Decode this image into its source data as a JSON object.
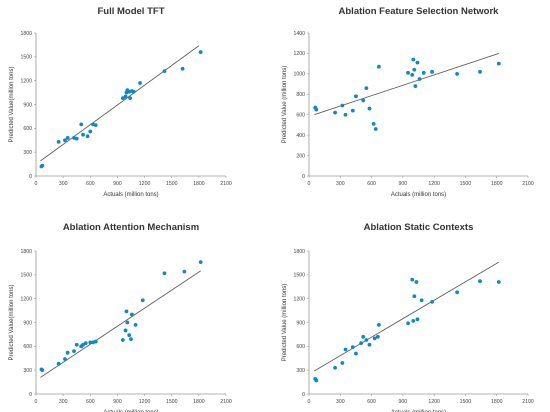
{
  "chart_data": [
    {
      "type": "scatter",
      "title": "Full Model TFT",
      "xlabel": "Actuals  (million tons)",
      "ylabel": "Predicted Value(million tons)",
      "xlim": [
        0,
        2100
      ],
      "ylim": [
        0,
        1800
      ],
      "xticks": [
        "0",
        "300",
        "600",
        "900",
        "1200",
        "1500",
        "1800",
        "2100"
      ],
      "yticks": [
        "0",
        "300",
        "600",
        "900",
        "1200",
        "1500",
        "1800"
      ],
      "grid": false,
      "series": [
        {
          "points": [
            [
              60,
              120
            ],
            [
              70,
              130
            ],
            [
              250,
              430
            ],
            [
              320,
              450
            ],
            [
              350,
              480
            ],
            [
              420,
              480
            ],
            [
              450,
              470
            ],
            [
              500,
              650
            ],
            [
              520,
              520
            ],
            [
              570,
              500
            ],
            [
              600,
              560
            ],
            [
              630,
              650
            ],
            [
              660,
              640
            ],
            [
              960,
              980
            ],
            [
              990,
              1000
            ],
            [
              1000,
              1050
            ],
            [
              1010,
              1080
            ],
            [
              1030,
              1060
            ],
            [
              1060,
              1070
            ],
            [
              1040,
              980
            ],
            [
              1080,
              1060
            ],
            [
              1150,
              1170
            ],
            [
              1420,
              1320
            ],
            [
              1620,
              1350
            ],
            [
              1820,
              1560
            ]
          ]
        }
      ],
      "trendline": [
        [
          50,
          190
        ],
        [
          1800,
          1640
        ]
      ]
    },
    {
      "type": "scatter",
      "title": "Ablation Feature Selection Network",
      "xlabel": "Actuals  (million tons)",
      "ylabel": "Predicted Value  (million tons)",
      "xlim": [
        0,
        2100
      ],
      "ylim": [
        0,
        1400
      ],
      "xticks": [
        "0",
        "300",
        "600",
        "900",
        "1200",
        "1500",
        "1800",
        "2100"
      ],
      "yticks": [
        "0",
        "200",
        "400",
        "600",
        "800",
        "1000",
        "1200",
        "1400"
      ],
      "grid": false,
      "series": [
        {
          "points": [
            [
              60,
              670
            ],
            [
              70,
              650
            ],
            [
              250,
              620
            ],
            [
              320,
              690
            ],
            [
              350,
              600
            ],
            [
              420,
              640
            ],
            [
              450,
              780
            ],
            [
              520,
              740
            ],
            [
              550,
              860
            ],
            [
              580,
              660
            ],
            [
              620,
              510
            ],
            [
              640,
              460
            ],
            [
              670,
              1070
            ],
            [
              950,
              1010
            ],
            [
              990,
              990
            ],
            [
              1000,
              1140
            ],
            [
              1010,
              1040
            ],
            [
              1020,
              880
            ],
            [
              1040,
              1110
            ],
            [
              1060,
              950
            ],
            [
              1100,
              1010
            ],
            [
              1180,
              1020
            ],
            [
              1420,
              1000
            ],
            [
              1640,
              1020
            ],
            [
              1820,
              1100
            ]
          ]
        }
      ],
      "trendline": [
        [
          50,
          600
        ],
        [
          1820,
          1200
        ]
      ]
    },
    {
      "type": "scatter",
      "title": "Ablation Attention Mechanism",
      "xlabel": "Actuals  (million tons)",
      "ylabel": "Predicted Value(million tons)",
      "xlim": [
        0,
        2100
      ],
      "ylim": [
        0,
        1800
      ],
      "xticks": [
        "0",
        "300",
        "600",
        "900",
        "1200",
        "1500",
        "1800",
        "2100"
      ],
      "yticks": [
        "0",
        "300",
        "600",
        "900",
        "1200",
        "1500",
        "1800"
      ],
      "grid": false,
      "series": [
        {
          "points": [
            [
              60,
              310
            ],
            [
              70,
              300
            ],
            [
              250,
              380
            ],
            [
              320,
              440
            ],
            [
              350,
              520
            ],
            [
              420,
              540
            ],
            [
              450,
              620
            ],
            [
              500,
              600
            ],
            [
              520,
              620
            ],
            [
              550,
              640
            ],
            [
              600,
              650
            ],
            [
              630,
              650
            ],
            [
              660,
              660
            ],
            [
              960,
              680
            ],
            [
              990,
              800
            ],
            [
              1000,
              1040
            ],
            [
              1010,
              900
            ],
            [
              1030,
              740
            ],
            [
              1050,
              690
            ],
            [
              1060,
              1000
            ],
            [
              1100,
              870
            ],
            [
              1180,
              1180
            ],
            [
              1420,
              1520
            ],
            [
              1640,
              1540
            ],
            [
              1820,
              1660
            ]
          ]
        }
      ],
      "trendline": [
        [
          50,
          210
        ],
        [
          1820,
          1550
        ]
      ]
    },
    {
      "type": "scatter",
      "title": "Ablation Static Contexts",
      "xlabel": "Actuals  (million tons)",
      "ylabel": "Predicted Value  (million tons)",
      "xlim": [
        0,
        2100
      ],
      "ylim": [
        0,
        1800
      ],
      "xticks": [
        "0",
        "300",
        "600",
        "900",
        "1200",
        "1500",
        "1800",
        "2100"
      ],
      "yticks": [
        "0",
        "300",
        "600",
        "900",
        "1200",
        "1500",
        "1800"
      ],
      "grid": false,
      "series": [
        {
          "points": [
            [
              60,
              190
            ],
            [
              70,
              170
            ],
            [
              250,
              330
            ],
            [
              320,
              390
            ],
            [
              350,
              560
            ],
            [
              420,
              590
            ],
            [
              450,
              510
            ],
            [
              500,
              640
            ],
            [
              520,
              720
            ],
            [
              550,
              680
            ],
            [
              580,
              620
            ],
            [
              630,
              700
            ],
            [
              660,
              720
            ],
            [
              670,
              870
            ],
            [
              950,
              890
            ],
            [
              990,
              1440
            ],
            [
              1000,
              920
            ],
            [
              1010,
              1230
            ],
            [
              1030,
              1410
            ],
            [
              1040,
              940
            ],
            [
              1080,
              1180
            ],
            [
              1180,
              1160
            ],
            [
              1420,
              1280
            ],
            [
              1640,
              1420
            ],
            [
              1820,
              1410
            ]
          ]
        }
      ],
      "trendline": [
        [
          50,
          290
        ],
        [
          1820,
          1660
        ]
      ]
    }
  ],
  "colors": {
    "point": "#0f88c6",
    "trendline": "#606060",
    "axis": "#9a9a9a"
  }
}
